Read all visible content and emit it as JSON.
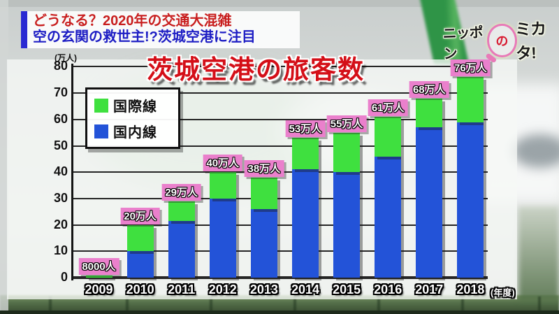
{
  "header": {
    "line1": "どうなる？2020年の交通大混雑",
    "line2": "空の玄関の救世主!?茨城空港に注目"
  },
  "logo": {
    "part1": "ニッポン",
    "particle": "の",
    "part2": "ミカタ!"
  },
  "chart_data": {
    "type": "bar",
    "stacked": true,
    "title": "茨城空港の旅客数",
    "unit_label": "(万人)",
    "x_unit_label": "(年度)",
    "categories": [
      "2009",
      "2010",
      "2011",
      "2012",
      "2013",
      "2014",
      "2015",
      "2016",
      "2017",
      "2018"
    ],
    "series": [
      {
        "name": "国際線",
        "color": "#3fe03f",
        "values": [
          0.8,
          10,
          7.5,
          10,
          12,
          12,
          15,
          15,
          11,
          17
        ]
      },
      {
        "name": "国内線",
        "color": "#2353d8",
        "values": [
          0,
          10,
          21.5,
          30,
          26,
          41,
          40,
          46,
          57,
          59
        ]
      }
    ],
    "totals": [
      0.8,
      20,
      29,
      40,
      38,
      53,
      55,
      61,
      68,
      76
    ],
    "value_labels": [
      "8000人",
      "20万人",
      "29万人",
      "40万人",
      "38万人",
      "53万人",
      "55万人",
      "61万人",
      "68万人",
      "76万人"
    ],
    "ylim": [
      0,
      80
    ],
    "yticks": [
      0,
      10,
      20,
      30,
      40,
      50,
      60,
      70,
      80
    ],
    "grid": true,
    "legend_position": "top-left",
    "value_label_bg": "#ea80cc"
  },
  "colors": {
    "headline_line1": "#c81e1e",
    "headline_line2": "#1d1dc4",
    "headline_accent": "#2a2ad2",
    "title_red": "#d40f18",
    "logo_particle_red": "#d81a30",
    "logo_circle_pink": "#e87ab8"
  }
}
